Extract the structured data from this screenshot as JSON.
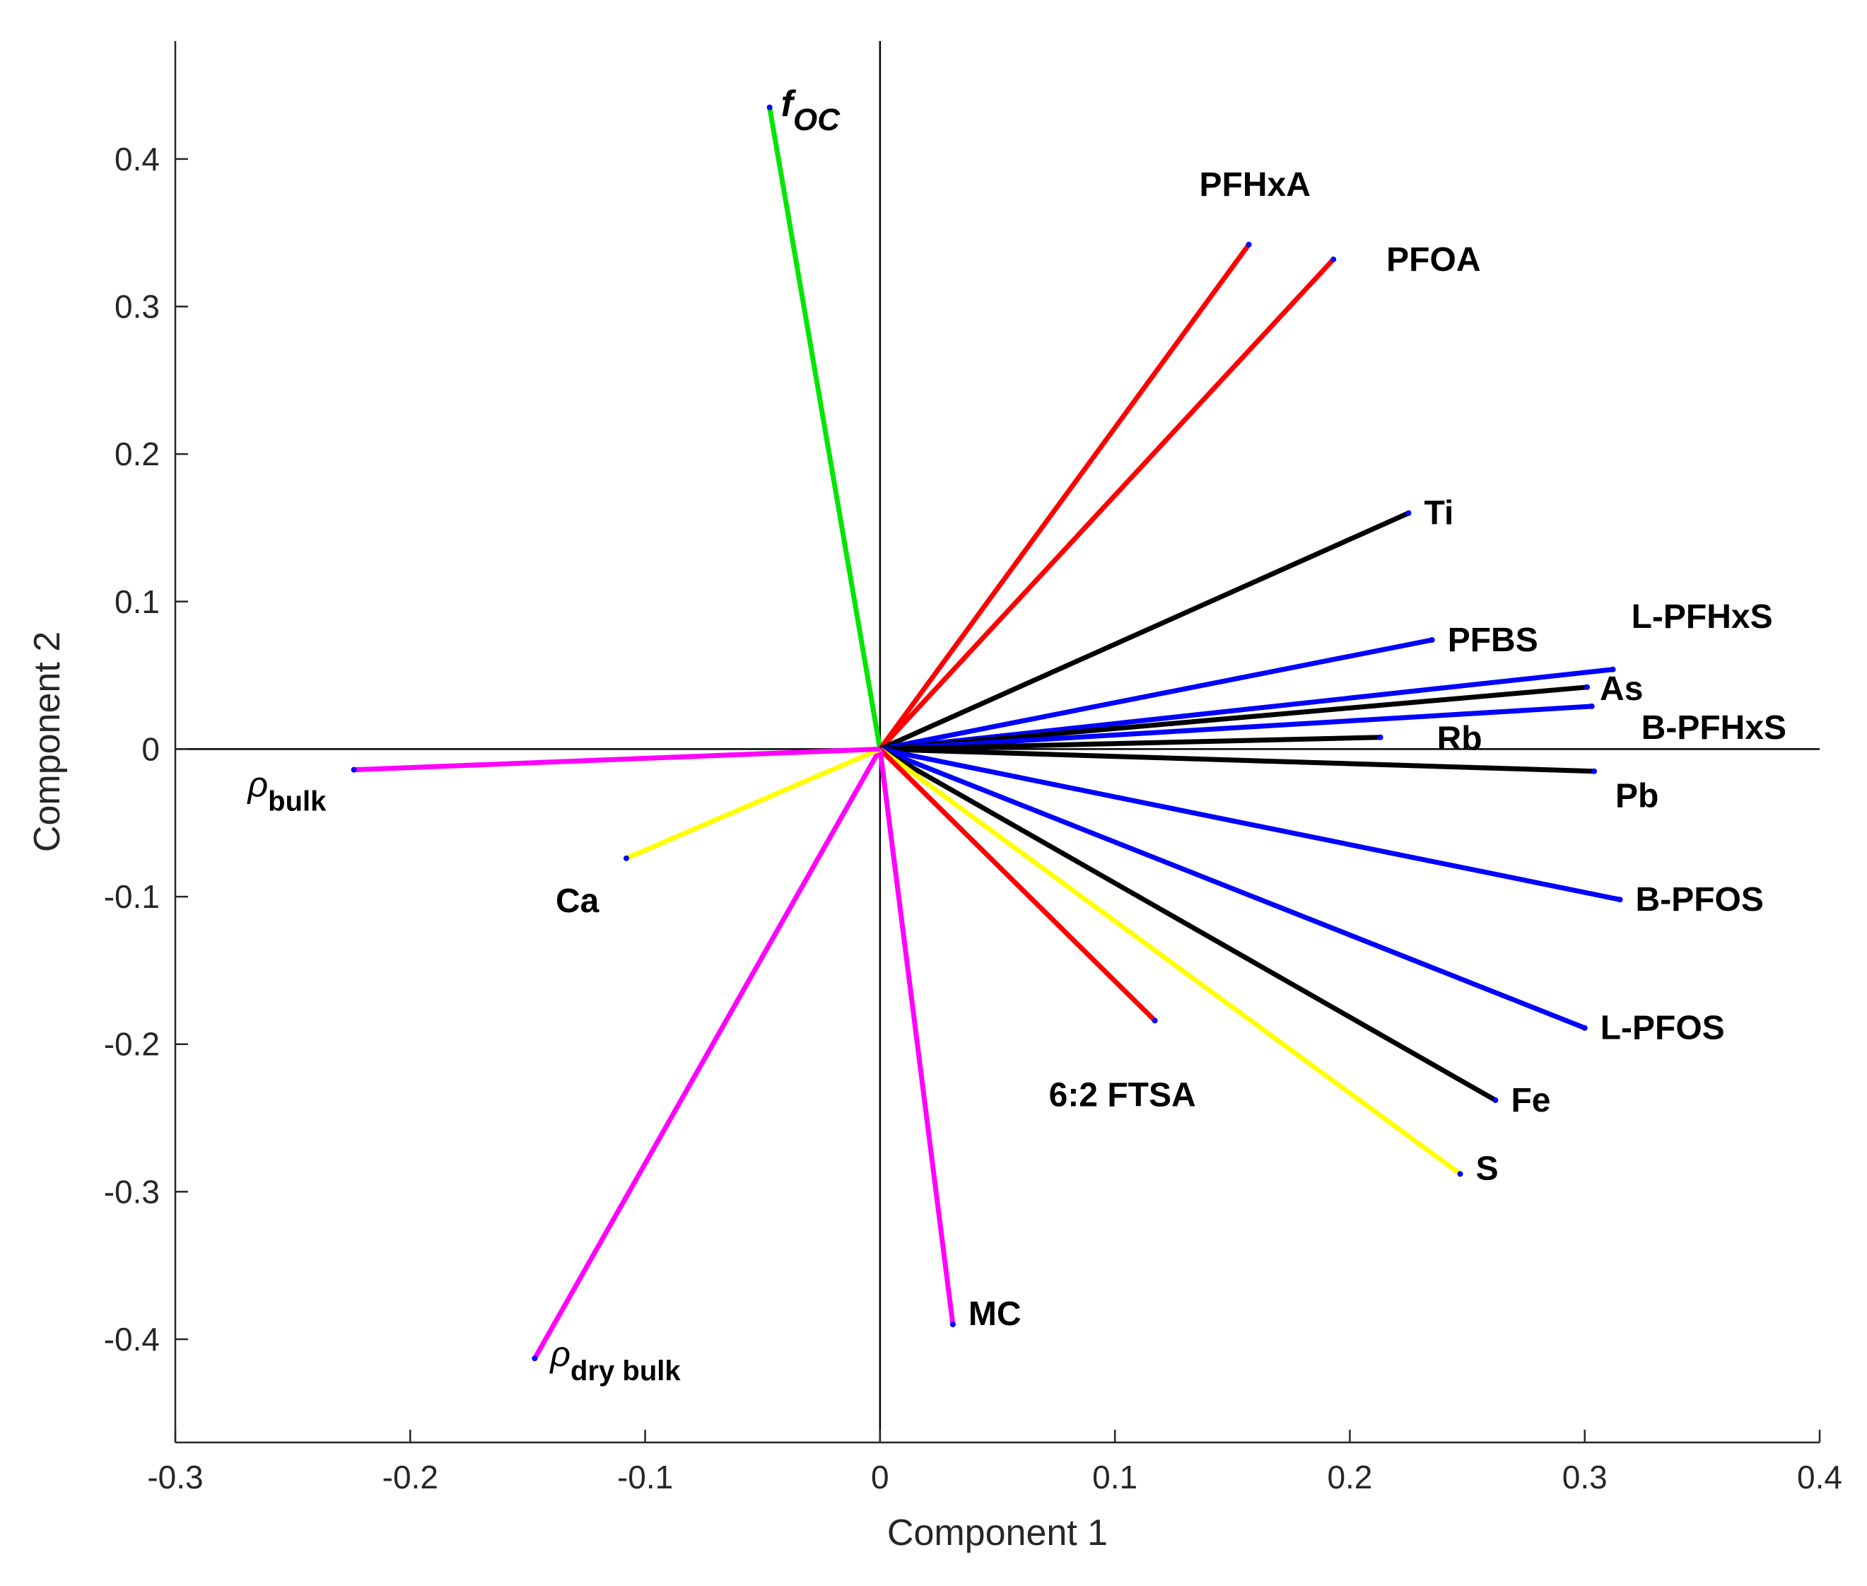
{
  "chart_data": {
    "type": "biplot",
    "title": "",
    "xlabel": "Component 1",
    "ylabel": "Component 2",
    "xlim": [
      -0.3,
      0.4
    ],
    "ylim": [
      -0.47,
      0.48
    ],
    "xticks": [
      {
        "value": -0.3,
        "label": "-0.3"
      },
      {
        "value": -0.2,
        "label": "-0.2"
      },
      {
        "value": -0.1,
        "label": "-0.1"
      },
      {
        "value": 0,
        "label": "0"
      },
      {
        "value": 0.1,
        "label": "0.1"
      },
      {
        "value": 0.2,
        "label": "0.2"
      },
      {
        "value": 0.3,
        "label": "0.3"
      },
      {
        "value": 0.4,
        "label": "0.4"
      }
    ],
    "yticks": [
      {
        "value": -0.4,
        "label": "-0.4"
      },
      {
        "value": -0.3,
        "label": "-0.3"
      },
      {
        "value": -0.2,
        "label": "-0.2"
      },
      {
        "value": -0.1,
        "label": "-0.1"
      },
      {
        "value": 0,
        "label": "0"
      },
      {
        "value": 0.1,
        "label": "0.1"
      },
      {
        "value": 0.2,
        "label": "0.2"
      },
      {
        "value": 0.3,
        "label": "0.3"
      },
      {
        "value": 0.4,
        "label": "0.4"
      }
    ],
    "vectors": [
      {
        "id": "foc",
        "label": "f",
        "sub": "OC",
        "style": "italic",
        "x": -0.047,
        "y": 0.435,
        "color": "#00e600"
      },
      {
        "id": "pfhxa",
        "label": "PFHxA",
        "sub": "",
        "style": "bold",
        "x": 0.157,
        "y": 0.342,
        "color": "#ff0000"
      },
      {
        "id": "pfoa",
        "label": "PFOA",
        "sub": "",
        "style": "bold",
        "x": 0.193,
        "y": 0.332,
        "color": "#ff0000"
      },
      {
        "id": "ti",
        "label": "Ti",
        "sub": "",
        "style": "bold",
        "x": 0.225,
        "y": 0.16,
        "color": "#000000"
      },
      {
        "id": "pfbs",
        "label": "PFBS",
        "sub": "",
        "style": "bold",
        "x": 0.235,
        "y": 0.074,
        "color": "#0000ff"
      },
      {
        "id": "l-pfhxs",
        "label": "L-PFHxS",
        "sub": "",
        "style": "bold",
        "x": 0.312,
        "y": 0.054,
        "color": "#0000ff"
      },
      {
        "id": "as",
        "label": "As",
        "sub": "",
        "style": "bold",
        "x": 0.301,
        "y": 0.042,
        "color": "#000000"
      },
      {
        "id": "b-pfhxs",
        "label": "B-PFHxS",
        "sub": "",
        "style": "bold",
        "x": 0.303,
        "y": 0.029,
        "color": "#0000ff"
      },
      {
        "id": "rb",
        "label": "Rb",
        "sub": "",
        "style": "bold",
        "x": 0.213,
        "y": 0.008,
        "color": "#000000"
      },
      {
        "id": "pb",
        "label": "Pb",
        "sub": "",
        "style": "bold",
        "x": 0.304,
        "y": -0.015,
        "color": "#000000"
      },
      {
        "id": "b-pfos",
        "label": "B-PFOS",
        "sub": "",
        "style": "bold",
        "x": 0.315,
        "y": -0.102,
        "color": "#0000ff"
      },
      {
        "id": "l-pfos",
        "label": "L-PFOS",
        "sub": "",
        "style": "bold",
        "x": 0.3,
        "y": -0.189,
        "color": "#0000ff"
      },
      {
        "id": "fe",
        "label": "Fe",
        "sub": "",
        "style": "bold",
        "x": 0.262,
        "y": -0.238,
        "color": "#000000"
      },
      {
        "id": "s",
        "label": "S",
        "sub": "",
        "style": "bold",
        "x": 0.247,
        "y": -0.288,
        "color": "#ffff00"
      },
      {
        "id": "ftsa",
        "label": "6:2 FTSA",
        "sub": "",
        "style": "bold",
        "x": 0.117,
        "y": -0.184,
        "color": "#ff0000"
      },
      {
        "id": "mc",
        "label": "MC",
        "sub": "",
        "style": "bold",
        "x": 0.031,
        "y": -0.39,
        "color": "#ff00ff"
      },
      {
        "id": "rho-dry-bulk",
        "label": "ρ",
        "sub": "dry bulk",
        "style": "greek",
        "x": -0.147,
        "y": -0.413,
        "color": "#ff00ff"
      },
      {
        "id": "ca",
        "label": "Ca",
        "sub": "",
        "style": "bold",
        "x": -0.108,
        "y": -0.074,
        "color": "#ffff00"
      },
      {
        "id": "rho-bulk",
        "label": "ρ",
        "sub": "bulk",
        "style": "greek",
        "x": -0.224,
        "y": -0.014,
        "color": "#ff00ff"
      }
    ]
  }
}
